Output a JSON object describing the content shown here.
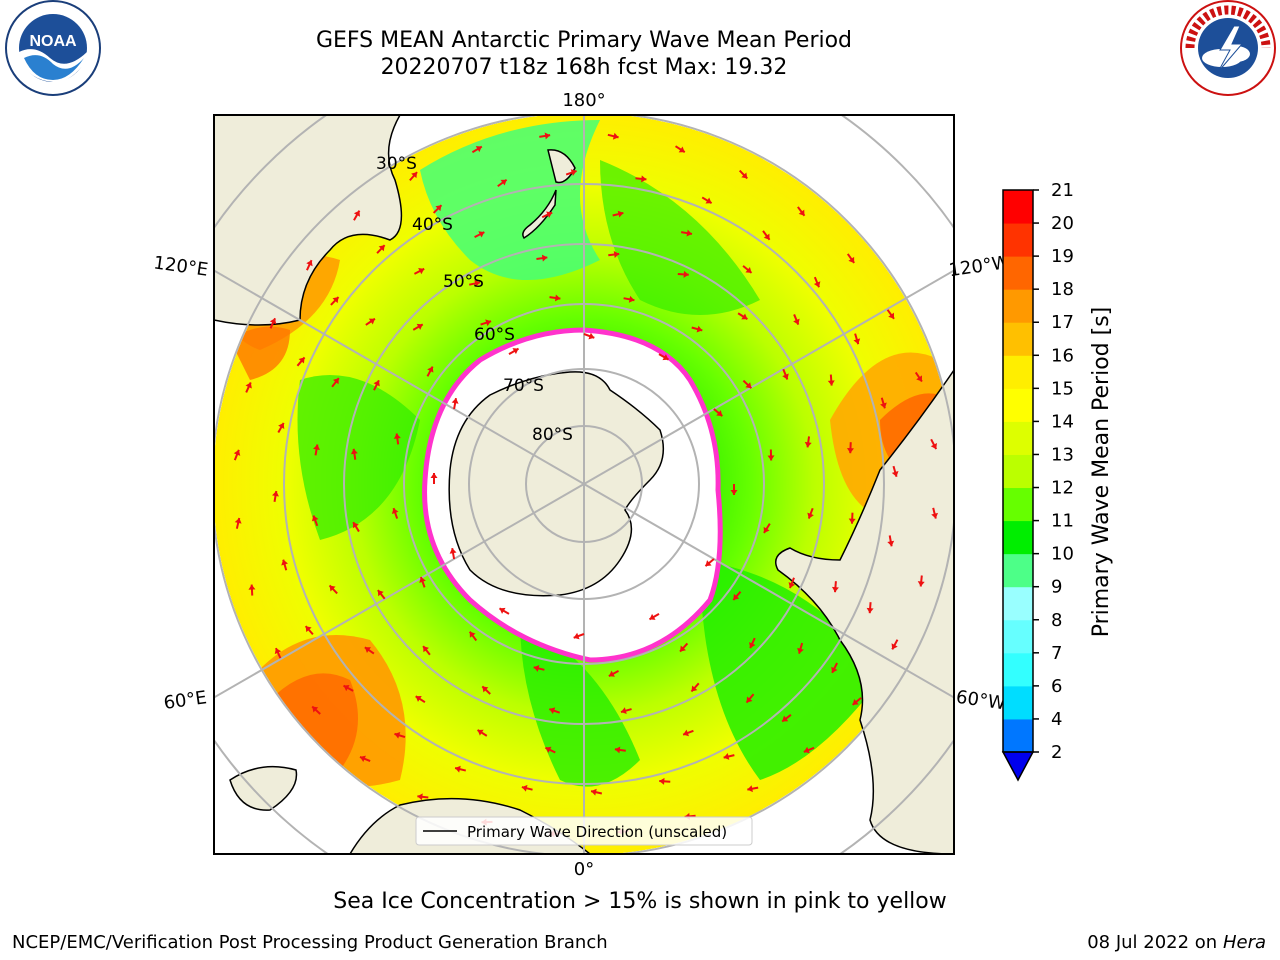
{
  "header": {
    "title_line1": "GEFS MEAN Antarctic Primary Wave Mean Period",
    "title_line2": "20220707 t18z 168h fcst   Max: 19.32"
  },
  "logos": {
    "left": "noaa-logo",
    "right": "national-weather-service-logo",
    "left_text": "NOAA",
    "right_text": "NATIONAL WEATHER SERVICE"
  },
  "map": {
    "projection": "south-polar-stereographic",
    "longitude_labels": {
      "top": "180°",
      "bottom": "0°",
      "upper_left": "120°E",
      "upper_right": "120°W",
      "lower_left": "60°E",
      "lower_right": "60°W"
    },
    "latitude_labels": [
      "30°S",
      "40°S",
      "50°S",
      "60°S",
      "70°S",
      "80°S"
    ],
    "legend_label": "Primary Wave Direction (unscaled)",
    "colors": {
      "land": "#efedda",
      "ice_edge": "#ff33cc",
      "arrow": "#ee1111"
    }
  },
  "colorbar": {
    "label": "Primary Wave Mean Period [s]",
    "ticks": [
      "2",
      "4",
      "6",
      "7",
      "8",
      "9",
      "10",
      "11",
      "12",
      "13",
      "14",
      "15",
      "16",
      "17",
      "18",
      "19",
      "20",
      "21"
    ],
    "colors": [
      "#0077ff",
      "#00ddff",
      "#33ffff",
      "#66ffff",
      "#99ffff",
      "#4dff88",
      "#00ee00",
      "#66ff00",
      "#bbff00",
      "#ddff00",
      "#ffff00",
      "#ffee00",
      "#ffc000",
      "#ff9900",
      "#ff6600",
      "#ff3300",
      "#ff0000"
    ],
    "extend_color": "#0000ee"
  },
  "footer": {
    "note": "Sea Ice Concentration > 15% is shown in pink to yellow",
    "credit": "NCEP/EMC/Verification Post Processing Product Generation Branch",
    "date": "08 Jul 2022 on",
    "machine": "Hera"
  }
}
